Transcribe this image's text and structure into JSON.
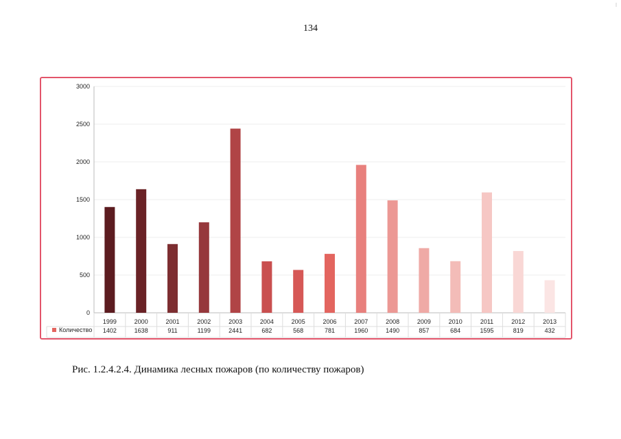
{
  "page": {
    "number": "134",
    "caption": "Рис. 1.2.4.2.4.  Динамика лесных пожаров (по количеству пожаров)"
  },
  "chart_data": {
    "type": "bar",
    "title": "",
    "xlabel": "",
    "ylabel": "",
    "ylim": [
      0,
      3000
    ],
    "yticks": [
      0,
      500,
      1000,
      1500,
      2000,
      2500,
      3000
    ],
    "grid": true,
    "legend": "bottom-left (in data table)",
    "categories": [
      "1999",
      "2000",
      "2001",
      "2002",
      "2003",
      "2004",
      "2005",
      "2006",
      "2007",
      "2008",
      "2009",
      "2010",
      "2011",
      "2012",
      "2013"
    ],
    "series": [
      {
        "name": "Количество",
        "values": [
          1402,
          1638,
          911,
          1199,
          2441,
          682,
          568,
          781,
          1960,
          1490,
          857,
          684,
          1595,
          819,
          432
        ]
      }
    ],
    "bar_colors": [
      "#5c1c20",
      "#6a2226",
      "#7d2e31",
      "#96383c",
      "#b04446",
      "#c94f4f",
      "#d65856",
      "#e3655f",
      "#e8807d",
      "#ec9894",
      "#efaaa6",
      "#f3bcb8",
      "#f6c7c4",
      "#f9d7d5",
      "#fbe5e4"
    ],
    "legend_color": "#e3655f"
  }
}
